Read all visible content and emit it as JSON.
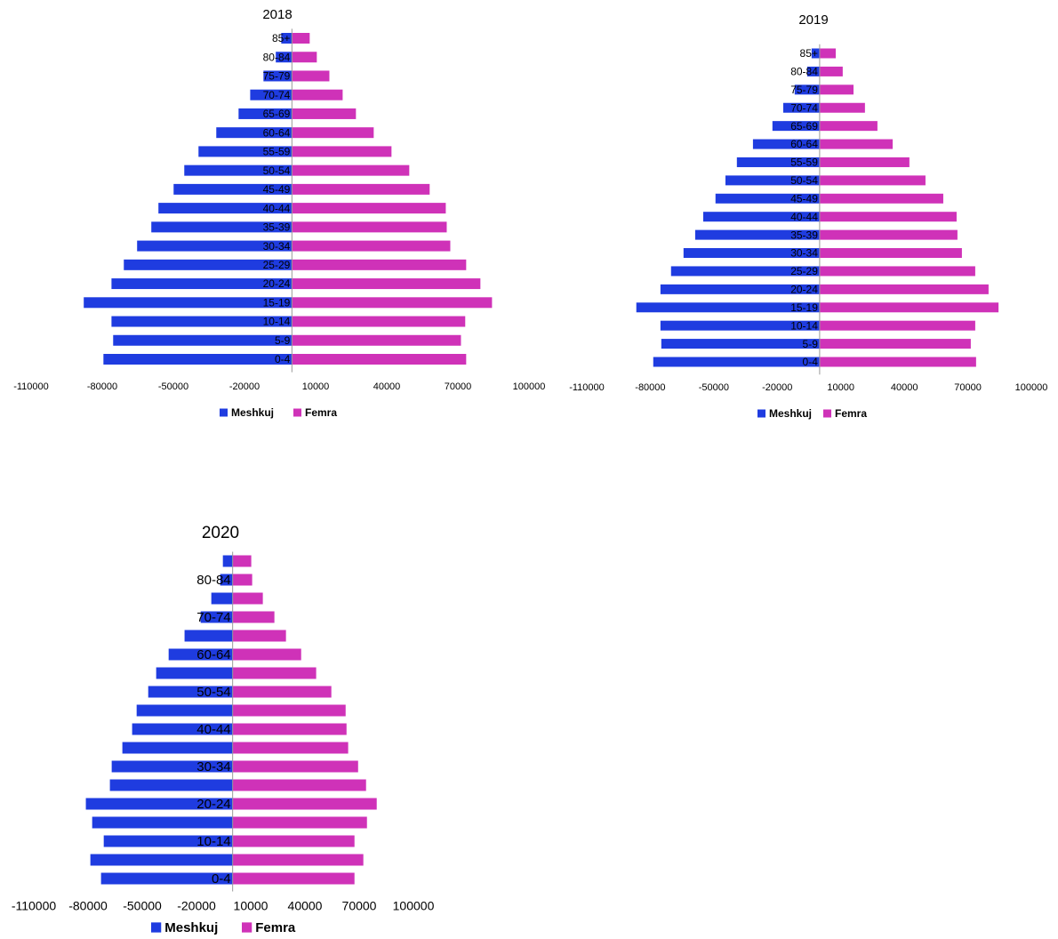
{
  "chart_data": [
    {
      "type": "bar",
      "title": "2018",
      "categories": [
        "85+",
        "80-84",
        "75-79",
        "70-74",
        "65-69",
        "60-64",
        "55-59",
        "50-54",
        "45-49",
        "40-44",
        "35-39",
        "30-34",
        "25-29",
        "20-24",
        "15-19",
        "10-14",
        "5-9",
        "0-4"
      ],
      "series": [
        {
          "name": "Meshkuj",
          "color": "#1f3ce0",
          "values": [
            -4500,
            -6800,
            -12000,
            -17600,
            -22500,
            -31900,
            -39400,
            -45400,
            -49900,
            -56300,
            -59300,
            -65300,
            -70900,
            -76100,
            -87800,
            -76100,
            -75400,
            -79500
          ]
        },
        {
          "name": "Femra",
          "color": "#cf32b8",
          "values": [
            7500,
            10500,
            15800,
            21400,
            27000,
            34500,
            42000,
            49500,
            58100,
            64900,
            65300,
            66800,
            73500,
            79500,
            84400,
            73100,
            71300,
            73500
          ]
        }
      ],
      "xlim": [
        -110000,
        100000
      ],
      "xticks": [
        -110000,
        -80000,
        -50000,
        -20000,
        10000,
        40000,
        70000,
        100000
      ],
      "legend": "bottom"
    },
    {
      "type": "bar",
      "title": "2019",
      "categories": [
        "85+",
        "80-84",
        "75-79",
        "70-74",
        "65-69",
        "60-64",
        "55-59",
        "50-54",
        "45-49",
        "40-44",
        "35-39",
        "30-34",
        "25-29",
        "20-24",
        "15-19",
        "10-14",
        "5-9",
        "0-4"
      ],
      "series": [
        {
          "name": "Meshkuj",
          "color": "#1f3ce0",
          "values": [
            -3800,
            -5900,
            -11800,
            -17200,
            -22300,
            -31500,
            -39100,
            -44500,
            -49200,
            -55000,
            -58800,
            -64300,
            -70200,
            -75200,
            -86600,
            -75200,
            -74800,
            -78600
          ]
        },
        {
          "name": "Femra",
          "color": "#cf32b8",
          "values": [
            7600,
            10900,
            16000,
            21400,
            27300,
            34500,
            42400,
            50000,
            58400,
            64700,
            65100,
            67200,
            73500,
            79800,
            84500,
            73500,
            71400,
            73900
          ]
        }
      ],
      "xlim": [
        -110000,
        100000
      ],
      "xticks": [
        -110000,
        -80000,
        -50000,
        -20000,
        10000,
        40000,
        70000,
        100000
      ],
      "legend": "bottom"
    },
    {
      "type": "bar",
      "title": "2020",
      "categories": [
        null,
        "80-84",
        null,
        "70-74",
        null,
        "60-64",
        null,
        "50-54",
        null,
        "40-44",
        null,
        "30-34",
        null,
        "20-24",
        null,
        "10-14",
        null,
        "0-4"
      ],
      "series": [
        {
          "name": "Meshkuj",
          "color": "#1f3ce0",
          "values": [
            -5400,
            -6900,
            -11800,
            -17700,
            -26600,
            -35400,
            -42300,
            -46700,
            -53100,
            -55600,
            -61000,
            -66900,
            -67900,
            -81200,
            -77700,
            -71300,
            -78700,
            -72800
          ]
        },
        {
          "name": "Femra",
          "color": "#cf32b8",
          "values": [
            10300,
            10800,
            16700,
            23100,
            29500,
            37900,
            46200,
            54600,
            62500,
            63000,
            63900,
            69400,
            73800,
            79700,
            74300,
            67400,
            72300,
            67400
          ]
        }
      ],
      "xlim": [
        -110000,
        100000
      ],
      "xticks": [
        -110000,
        -80000,
        -50000,
        -20000,
        10000,
        40000,
        70000,
        100000
      ],
      "legend": "bottom"
    }
  ]
}
